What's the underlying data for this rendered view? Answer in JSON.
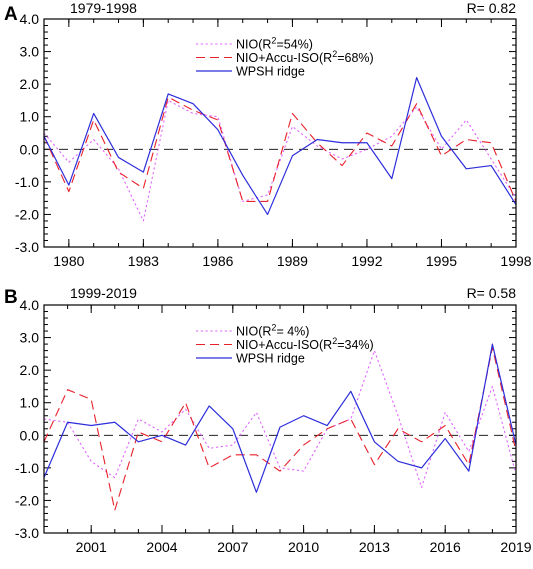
{
  "colors": {
    "nio": "#e066ff",
    "nio_accu": "#e8202a",
    "wpsh": "#2d2ddc",
    "axis": "#000000",
    "background": "#ffffff"
  },
  "chart_data": [
    {
      "type": "line",
      "panel_label": "A",
      "period_label": "1979-1998",
      "r_label": "R= 0.82",
      "x": [
        1979,
        1980,
        1981,
        1982,
        1983,
        1984,
        1985,
        1986,
        1987,
        1988,
        1989,
        1990,
        1991,
        1992,
        1993,
        1994,
        1995,
        1996,
        1997,
        1998
      ],
      "xlim": [
        1979,
        1998
      ],
      "xticks": [
        1980,
        1983,
        1986,
        1989,
        1992,
        1995,
        1998
      ],
      "xtick_labels": [
        "1980",
        "1983",
        "1986",
        "1989",
        "1992",
        "1995",
        "1998"
      ],
      "xminor": [
        1979,
        1980,
        1981,
        1982,
        1983,
        1984,
        1985,
        1986,
        1987,
        1988,
        1989,
        1990,
        1991,
        1992,
        1993,
        1994,
        1995,
        1996,
        1997,
        1998
      ],
      "ylim": [
        -3.0,
        4.0
      ],
      "yticks": [
        -3,
        -2,
        -1,
        0,
        1,
        2,
        3,
        4
      ],
      "ytick_labels": [
        "-3.0",
        "-2.0",
        "-1.0",
        "0.0",
        "1.0",
        "2.0",
        "3.0",
        "4.0"
      ],
      "zero_line": true,
      "legend_position": "top-center",
      "series": [
        {
          "key": "nio",
          "name": "NIO(R",
          "name_sup": "2",
          "name_tail": "=54%)",
          "style": "dotted",
          "values": [
            0.5,
            -0.4,
            0.3,
            -0.6,
            -2.2,
            1.5,
            1.1,
            1.0,
            -1.6,
            -1.4,
            0.7,
            0.1,
            -0.3,
            0.0,
            0.4,
            1.3,
            0.0,
            0.9,
            -0.3,
            -1.5
          ]
        },
        {
          "key": "nio_accu",
          "name": "NIO+Accu-ISO(R",
          "name_sup": "2",
          "name_tail": "=68%)",
          "style": "dashed",
          "values": [
            0.4,
            -1.3,
            0.9,
            -0.7,
            -1.2,
            1.6,
            1.2,
            0.9,
            -1.6,
            -1.6,
            1.1,
            0.2,
            -0.5,
            0.5,
            0.1,
            1.4,
            -0.2,
            0.3,
            0.2,
            -1.6
          ]
        },
        {
          "key": "wpsh",
          "name": "WPSH ridge",
          "name_sup": "",
          "name_tail": "",
          "style": "solid",
          "values": [
            0.4,
            -1.1,
            1.1,
            -0.25,
            -0.7,
            1.7,
            1.4,
            0.6,
            -0.8,
            -2.0,
            -0.2,
            0.3,
            0.2,
            0.2,
            -0.9,
            2.2,
            0.4,
            -0.6,
            -0.5,
            -1.7
          ]
        }
      ]
    },
    {
      "type": "line",
      "panel_label": "B",
      "period_label": "1999-2019",
      "r_label": "R= 0.58",
      "x": [
        1999,
        2000,
        2001,
        2002,
        2003,
        2004,
        2005,
        2006,
        2007,
        2008,
        2009,
        2010,
        2011,
        2012,
        2013,
        2014,
        2015,
        2016,
        2017,
        2018,
        2019
      ],
      "xlim": [
        1999,
        2019
      ],
      "xticks": [
        2001,
        2004,
        2007,
        2010,
        2013,
        2016,
        2019
      ],
      "xtick_labels": [
        "2001",
        "2004",
        "2007",
        "2010",
        "2013",
        "2016",
        "2019"
      ],
      "xminor": [
        1999,
        2000,
        2001,
        2002,
        2003,
        2004,
        2005,
        2006,
        2007,
        2008,
        2009,
        2010,
        2011,
        2012,
        2013,
        2014,
        2015,
        2016,
        2017,
        2018,
        2019
      ],
      "ylim": [
        -3.0,
        4.0
      ],
      "yticks": [
        -3,
        -2,
        -1,
        0,
        1,
        2,
        3,
        4
      ],
      "ytick_labels": [
        "-3.0",
        "-2.0",
        "-1.0",
        "0.0",
        "1.0",
        "2.0",
        "3.0",
        "4.0"
      ],
      "zero_line": true,
      "legend_position": "top-center",
      "series": [
        {
          "key": "nio",
          "name": "NIO(R",
          "name_sup": "2",
          "name_tail": "= 4%)",
          "style": "dotted",
          "values": [
            0.5,
            0.4,
            -0.8,
            -1.3,
            0.5,
            0.1,
            0.8,
            -0.4,
            -0.3,
            0.7,
            -1.0,
            -1.1,
            0.2,
            0.5,
            2.6,
            0.6,
            -1.6,
            0.7,
            -0.5,
            1.5,
            -1.2
          ]
        },
        {
          "key": "nio_accu",
          "name": "NIO+Accu-ISO(R",
          "name_sup": "2",
          "name_tail": "=34%)",
          "style": "dashed",
          "values": [
            -0.2,
            1.4,
            1.1,
            -2.3,
            0.1,
            -0.2,
            1.0,
            -1.0,
            -0.6,
            -0.6,
            -1.1,
            -0.3,
            0.2,
            0.5,
            -0.9,
            0.2,
            -0.2,
            0.3,
            -0.9,
            2.7,
            -0.5
          ]
        },
        {
          "key": "wpsh",
          "name": "WPSH ridge",
          "name_sup": "",
          "name_tail": "",
          "style": "solid",
          "values": [
            -1.3,
            0.4,
            0.3,
            0.4,
            -0.2,
            0.0,
            -0.3,
            0.9,
            0.2,
            -1.75,
            0.25,
            0.6,
            0.3,
            1.35,
            -0.2,
            -0.8,
            -1.0,
            -0.1,
            -1.1,
            2.8,
            -0.3
          ]
        }
      ]
    }
  ]
}
